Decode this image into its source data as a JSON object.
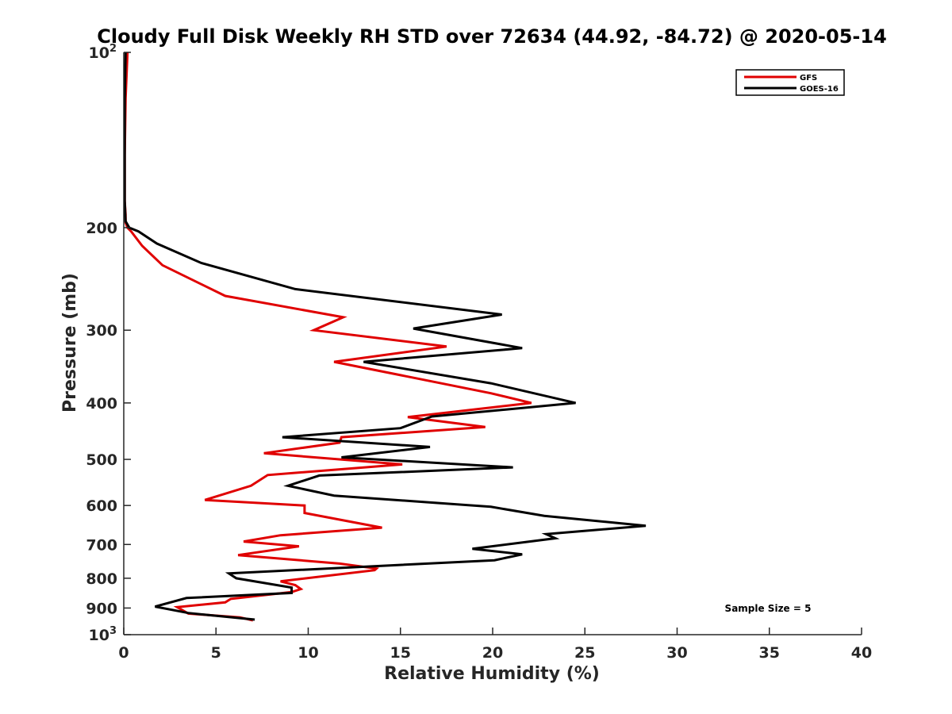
{
  "chart_data": {
    "type": "line",
    "title": "Cloudy Full Disk Weekly RH STD over 72634 (44.92, -84.72) @ 2020-05-14",
    "xlabel": "Relative Humidity (%)",
    "ylabel": "Pressure (mb)",
    "xlim": [
      0,
      40
    ],
    "ylim": [
      100,
      1000
    ],
    "y_scale": "log",
    "y_reversed": true,
    "grid": false,
    "legend_position": "top-right",
    "x_ticks": [
      "0",
      "5",
      "10",
      "15",
      "20",
      "25",
      "30",
      "35",
      "40"
    ],
    "y_ticks": [
      {
        "value": 100,
        "base": "10",
        "exp": "2"
      },
      {
        "value": 200,
        "label": "200"
      },
      {
        "value": 300,
        "label": "300"
      },
      {
        "value": 400,
        "label": "400"
      },
      {
        "value": 500,
        "label": "500"
      },
      {
        "value": 600,
        "label": "600"
      },
      {
        "value": 700,
        "label": "700"
      },
      {
        "value": 800,
        "label": "800"
      },
      {
        "value": 900,
        "label": "900"
      },
      {
        "value": 1000,
        "base": "10",
        "exp": "3"
      }
    ],
    "series": [
      {
        "name": "GFS",
        "color": "#e00000",
        "x": [
          0.2,
          0.1,
          0.05,
          0.05,
          0.1,
          0.1,
          0.2,
          0.4,
          1.0,
          2.1,
          5.5,
          11.9,
          10.3,
          17.5,
          11.4,
          19.9,
          22.1,
          15.4,
          19.6,
          11.8,
          11.7,
          7.6,
          15.1,
          7.8,
          6.9,
          4.4,
          9.8,
          9.8,
          14.0,
          8.5,
          6.5,
          9.5,
          6.2,
          11.7,
          13.7,
          13.6,
          8.5,
          9.3,
          9.6,
          9.1,
          5.8,
          5.5,
          2.9,
          3.5,
          6.3,
          7.0
        ],
        "y": [
          100,
          120,
          150,
          180,
          190,
          196,
          200,
          203,
          215,
          232,
          262,
          285,
          300,
          320,
          340,
          385,
          400,
          423,
          440,
          458,
          468,
          488,
          510,
          532,
          555,
          587,
          600,
          618,
          655,
          675,
          692,
          705,
          730,
          755,
          770,
          775,
          810,
          822,
          835,
          845,
          868,
          880,
          897,
          920,
          934,
          945
        ]
      },
      {
        "name": "GOES-16",
        "color": "#000000",
        "x": [
          0.1,
          0.05,
          0.05,
          0.05,
          0.1,
          0.3,
          0.8,
          1.8,
          4.2,
          9.3,
          20.5,
          15.7,
          21.6,
          13.0,
          19.9,
          24.5,
          16.7,
          15.0,
          8.6,
          16.6,
          11.8,
          21.1,
          10.6,
          8.9,
          11.4,
          19.9,
          22.8,
          28.3,
          22.9,
          23.4,
          18.9,
          21.6,
          20.1,
          5.7,
          6.1,
          9.1,
          9.1,
          3.4,
          1.7,
          3.5,
          7.1
        ],
        "y": [
          100,
          120,
          150,
          180,
          195,
          200,
          203,
          213,
          230,
          255,
          282,
          298,
          322,
          340,
          370,
          400,
          422,
          442,
          458,
          476,
          496,
          516,
          533,
          555,
          577,
          603,
          625,
          650,
          672,
          683,
          712,
          728,
          745,
          785,
          800,
          830,
          848,
          865,
          895,
          918,
          942
        ]
      }
    ],
    "annotations": [
      "Sample Size = 5"
    ]
  }
}
